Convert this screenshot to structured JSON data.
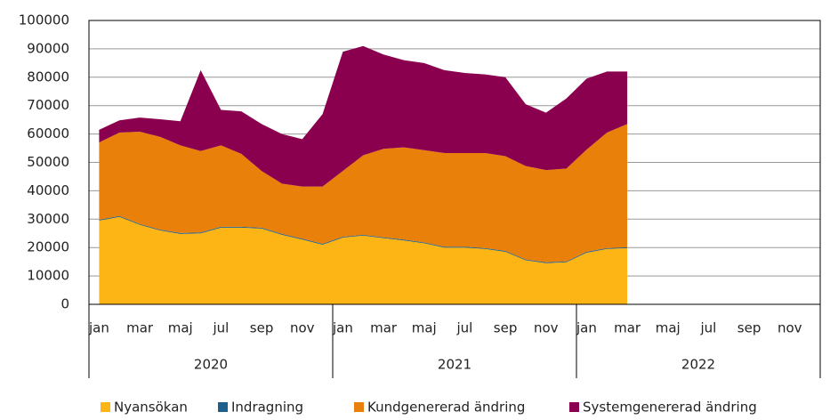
{
  "chart_data": {
    "type": "stacked_area",
    "categories": [
      "jan",
      null,
      "mar",
      null,
      "maj",
      null,
      "jul",
      null,
      "sep",
      null,
      "nov",
      null,
      "jan",
      null,
      "mar",
      null,
      "maj",
      null,
      "jul",
      null,
      "sep",
      null,
      "nov",
      null,
      "jan",
      null,
      "mar",
      null,
      "maj",
      null,
      "jul",
      null,
      "sep",
      null,
      "nov",
      null
    ],
    "years": [
      "2020",
      "2021",
      "2022"
    ],
    "series": [
      {
        "name": "Nyansökan",
        "color": "#fdb515",
        "values": [
          29500,
          30800,
          28000,
          26000,
          24800,
          25000,
          27000,
          27000,
          26700,
          24500,
          22800,
          21000,
          23500,
          24200,
          23300,
          22500,
          21500,
          20000,
          20000,
          19500,
          18500,
          15500,
          14500,
          14800,
          18200,
          19500,
          19800,
          null,
          null,
          null,
          null,
          null,
          null,
          null,
          null,
          null
        ]
      },
      {
        "name": "Indragning",
        "color": "#1f5f8b",
        "values": [
          300,
          300,
          300,
          300,
          300,
          300,
          300,
          300,
          300,
          300,
          300,
          300,
          300,
          300,
          300,
          300,
          300,
          300,
          300,
          300,
          300,
          300,
          300,
          300,
          300,
          300,
          300,
          null,
          null,
          null,
          null,
          null,
          null,
          null,
          null,
          null
        ]
      },
      {
        "name": "Kundgenererad ändring",
        "color": "#e8800a",
        "values": [
          27200,
          29400,
          32500,
          32700,
          30900,
          28700,
          28700,
          25700,
          20000,
          17700,
          18400,
          20200,
          23200,
          28000,
          31200,
          32500,
          32500,
          33000,
          33000,
          33500,
          33400,
          32900,
          32500,
          32700,
          36000,
          40700,
          43400,
          null,
          null,
          null,
          null,
          null,
          null,
          null,
          null,
          null
        ]
      },
      {
        "name": "Systemgenererad ändring",
        "color": "#8a004f",
        "values": [
          4500,
          4300,
          5000,
          6200,
          8500,
          28500,
          12500,
          15000,
          16500,
          17500,
          16700,
          25500,
          42000,
          38500,
          33200,
          30700,
          30700,
          29200,
          28200,
          27700,
          27800,
          21800,
          20200,
          24700,
          25000,
          21500,
          18500,
          null,
          null,
          null,
          null,
          null,
          null,
          null,
          null,
          null
        ]
      }
    ],
    "ylim": [
      0,
      100000
    ],
    "yticks": [
      0,
      10000,
      20000,
      30000,
      40000,
      50000,
      60000,
      70000,
      80000,
      90000,
      100000
    ],
    "grid": true
  }
}
